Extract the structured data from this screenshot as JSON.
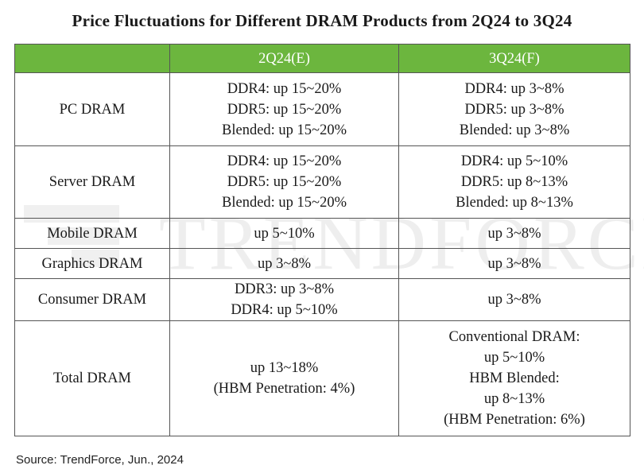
{
  "title": "Price Fluctuations for Different DRAM Products from 2Q24 to 3Q24",
  "colors": {
    "header_bg": "#6cb63e",
    "header_text": "#ffffff",
    "border": "#555555"
  },
  "watermark": "TRENDFORCE",
  "columns": [
    "2Q24(E)",
    "3Q24(F)"
  ],
  "rows": [
    {
      "product": "PC DRAM",
      "q2": [
        "DDR4: up 15~20%",
        "DDR5: up 15~20%",
        "Blended: up 15~20%"
      ],
      "q3": [
        "DDR4: up 3~8%",
        "DDR5: up 3~8%",
        "Blended: up 3~8%"
      ]
    },
    {
      "product": "Server DRAM",
      "q2": [
        "DDR4: up 15~20%",
        "DDR5: up 15~20%",
        "Blended: up 15~20%"
      ],
      "q3": [
        "DDR4: up 5~10%",
        "DDR5: up 8~13%",
        "Blended: up 8~13%"
      ]
    },
    {
      "product": "Mobile DRAM",
      "q2": [
        "up 5~10%"
      ],
      "q3": [
        "up 3~8%"
      ]
    },
    {
      "product": "Graphics DRAM",
      "q2": [
        "up 3~8%"
      ],
      "q3": [
        "up 3~8%"
      ]
    },
    {
      "product": "Consumer DRAM",
      "q2": [
        "DDR3: up 3~8%",
        "DDR4: up 5~10%"
      ],
      "q3": [
        "up 3~8%"
      ]
    },
    {
      "product": "Total DRAM",
      "q2": [
        "up 13~18%",
        "(HBM Penetration: 4%)"
      ],
      "q3": [
        "Conventional DRAM:",
        "up 5~10%",
        "HBM Blended:",
        "up 8~13%",
        "(HBM Penetration: 6%)"
      ]
    }
  ],
  "source": "Source: TrendForce, Jun., 2024"
}
